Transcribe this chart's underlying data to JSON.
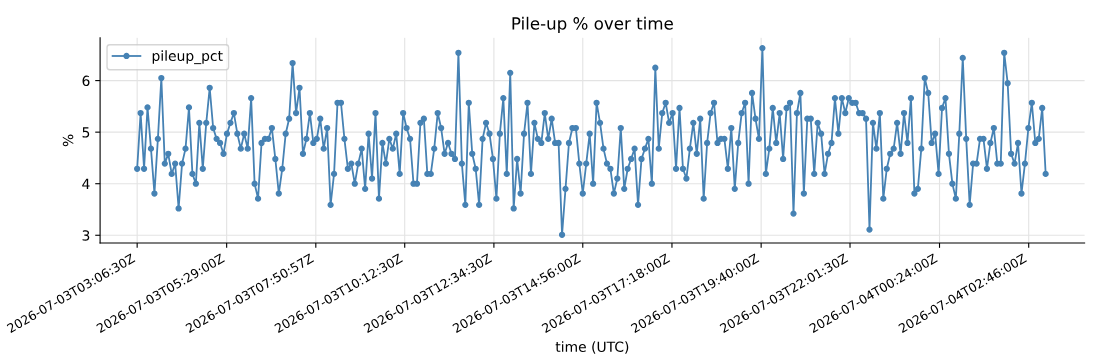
{
  "chart_data": {
    "type": "line",
    "title": "Pile-up % over time",
    "xlabel": "time (UTC)",
    "ylabel": "%",
    "x": [
      "2026-07-03T03:06:30",
      "2026-07-03T03:12:00",
      "2026-07-03T03:17:30",
      "2026-07-03T03:23:00",
      "2026-07-03T03:28:30",
      "2026-07-03T03:34:00",
      "2026-07-03T03:39:30",
      "2026-07-03T03:45:00",
      "2026-07-03T03:50:30",
      "2026-07-03T03:56:00",
      "2026-07-03T04:01:30",
      "2026-07-03T04:07:00",
      "2026-07-03T04:12:30",
      "2026-07-03T04:18:00",
      "2026-07-03T04:23:30",
      "2026-07-03T04:29:00",
      "2026-07-03T04:34:30",
      "2026-07-03T04:40:00",
      "2026-07-03T04:45:30",
      "2026-07-03T04:51:00",
      "2026-07-03T04:56:30",
      "2026-07-03T05:02:00",
      "2026-07-03T05:07:30",
      "2026-07-03T05:13:00",
      "2026-07-03T05:18:30",
      "2026-07-03T05:24:00",
      "2026-07-03T05:29:30",
      "2026-07-03T05:35:00",
      "2026-07-03T05:40:30",
      "2026-07-03T05:46:00",
      "2026-07-03T05:51:30",
      "2026-07-03T05:57:00",
      "2026-07-03T06:02:30",
      "2026-07-03T06:08:00",
      "2026-07-03T06:13:30",
      "2026-07-03T06:19:00",
      "2026-07-03T06:24:30",
      "2026-07-03T06:30:00",
      "2026-07-03T06:35:30",
      "2026-07-03T06:41:00",
      "2026-07-03T06:46:30",
      "2026-07-03T06:52:00",
      "2026-07-03T06:57:30",
      "2026-07-03T07:03:00",
      "2026-07-03T07:08:30",
      "2026-07-03T07:14:00",
      "2026-07-03T07:19:30",
      "2026-07-03T07:25:00",
      "2026-07-03T07:30:30",
      "2026-07-03T07:36:00",
      "2026-07-03T07:41:30",
      "2026-07-03T07:47:00",
      "2026-07-03T07:52:30",
      "2026-07-03T07:58:00",
      "2026-07-03T08:03:30",
      "2026-07-03T08:09:00",
      "2026-07-03T08:14:30",
      "2026-07-03T08:20:00",
      "2026-07-03T08:25:30",
      "2026-07-03T08:31:00",
      "2026-07-03T08:36:30",
      "2026-07-03T08:42:00",
      "2026-07-03T08:47:30",
      "2026-07-03T08:53:00",
      "2026-07-03T08:58:30",
      "2026-07-03T09:04:00",
      "2026-07-03T09:09:30",
      "2026-07-03T09:15:00",
      "2026-07-03T09:20:30",
      "2026-07-03T09:26:00",
      "2026-07-03T09:31:30",
      "2026-07-03T09:37:00",
      "2026-07-03T09:42:30",
      "2026-07-03T09:48:00",
      "2026-07-03T09:53:30",
      "2026-07-03T09:59:00",
      "2026-07-03T10:04:30",
      "2026-07-03T10:10:00",
      "2026-07-03T10:15:30",
      "2026-07-03T10:21:00",
      "2026-07-03T10:26:30",
      "2026-07-03T10:32:00",
      "2026-07-03T10:37:30",
      "2026-07-03T10:43:00",
      "2026-07-03T10:48:30",
      "2026-07-03T10:54:00",
      "2026-07-03T10:59:30",
      "2026-07-03T11:05:00",
      "2026-07-03T11:10:30",
      "2026-07-03T11:16:00",
      "2026-07-03T11:21:30",
      "2026-07-03T11:27:00",
      "2026-07-03T11:32:30",
      "2026-07-03T11:38:00",
      "2026-07-03T11:43:30",
      "2026-07-03T11:49:00",
      "2026-07-03T11:54:30",
      "2026-07-03T12:00:00",
      "2026-07-03T12:05:30",
      "2026-07-03T12:11:00",
      "2026-07-03T12:16:30",
      "2026-07-03T12:22:00",
      "2026-07-03T12:27:30",
      "2026-07-03T12:33:00",
      "2026-07-03T12:38:30",
      "2026-07-03T12:44:00",
      "2026-07-03T12:49:30",
      "2026-07-03T12:55:00",
      "2026-07-03T13:00:30",
      "2026-07-03T13:06:00",
      "2026-07-03T13:11:30",
      "2026-07-03T13:17:00",
      "2026-07-03T13:22:30",
      "2026-07-03T13:28:00",
      "2026-07-03T13:33:30",
      "2026-07-03T13:39:00",
      "2026-07-03T13:44:30",
      "2026-07-03T13:50:00",
      "2026-07-03T13:55:30",
      "2026-07-03T14:01:00",
      "2026-07-03T14:06:30",
      "2026-07-03T14:12:00",
      "2026-07-03T14:17:30",
      "2026-07-03T14:23:00",
      "2026-07-03T14:28:30",
      "2026-07-03T14:34:00",
      "2026-07-03T14:39:30",
      "2026-07-03T14:45:00",
      "2026-07-03T14:50:30",
      "2026-07-03T14:56:00",
      "2026-07-03T15:01:30",
      "2026-07-03T15:07:00",
      "2026-07-03T15:12:30",
      "2026-07-03T15:18:00",
      "2026-07-03T15:23:30",
      "2026-07-03T15:29:00",
      "2026-07-03T15:34:30",
      "2026-07-03T15:40:00",
      "2026-07-03T15:45:30",
      "2026-07-03T15:51:00",
      "2026-07-03T15:56:30",
      "2026-07-03T16:02:00",
      "2026-07-03T16:07:30",
      "2026-07-03T16:13:00",
      "2026-07-03T16:18:30",
      "2026-07-03T16:24:00",
      "2026-07-03T16:29:30",
      "2026-07-03T16:35:00",
      "2026-07-03T16:40:30",
      "2026-07-03T16:46:00",
      "2026-07-03T16:51:30",
      "2026-07-03T16:57:00",
      "2026-07-03T17:02:30",
      "2026-07-03T17:08:00",
      "2026-07-03T17:13:30",
      "2026-07-03T17:19:00",
      "2026-07-03T17:24:30",
      "2026-07-03T17:30:00",
      "2026-07-03T17:35:30",
      "2026-07-03T17:41:00",
      "2026-07-03T17:46:30",
      "2026-07-03T17:52:00",
      "2026-07-03T17:57:30",
      "2026-07-03T18:03:00",
      "2026-07-03T18:08:30",
      "2026-07-03T18:14:00",
      "2026-07-03T18:19:30",
      "2026-07-03T18:25:00",
      "2026-07-03T18:30:30",
      "2026-07-03T18:36:00",
      "2026-07-03T18:41:30",
      "2026-07-03T18:47:00",
      "2026-07-03T18:52:30",
      "2026-07-03T18:58:00",
      "2026-07-03T19:03:30",
      "2026-07-03T19:09:00",
      "2026-07-03T19:14:30",
      "2026-07-03T19:20:00",
      "2026-07-03T19:25:30",
      "2026-07-03T19:31:00",
      "2026-07-03T19:36:30",
      "2026-07-03T19:42:00",
      "2026-07-03T19:47:30",
      "2026-07-03T19:53:00",
      "2026-07-03T19:58:30",
      "2026-07-03T20:04:00",
      "2026-07-03T20:09:30",
      "2026-07-03T20:15:00",
      "2026-07-03T20:20:30",
      "2026-07-03T20:26:00",
      "2026-07-03T20:31:30",
      "2026-07-03T20:37:00",
      "2026-07-03T20:42:30",
      "2026-07-03T20:48:00",
      "2026-07-03T20:53:30",
      "2026-07-03T20:59:00",
      "2026-07-03T21:04:30",
      "2026-07-03T21:10:00",
      "2026-07-03T21:15:30",
      "2026-07-03T21:21:00",
      "2026-07-03T21:26:30",
      "2026-07-03T21:32:00",
      "2026-07-03T21:37:30",
      "2026-07-03T21:43:00",
      "2026-07-03T21:48:30",
      "2026-07-03T21:54:00",
      "2026-07-03T21:59:30",
      "2026-07-03T22:05:00",
      "2026-07-03T22:10:30",
      "2026-07-03T22:16:00",
      "2026-07-03T22:21:30",
      "2026-07-03T22:27:00",
      "2026-07-03T22:32:30",
      "2026-07-03T22:38:00",
      "2026-07-03T22:43:30",
      "2026-07-03T22:49:00",
      "2026-07-03T22:54:30",
      "2026-07-03T23:00:00",
      "2026-07-03T23:05:30",
      "2026-07-03T23:11:00",
      "2026-07-03T23:16:30",
      "2026-07-03T23:22:00",
      "2026-07-03T23:27:30",
      "2026-07-03T23:33:00",
      "2026-07-03T23:38:30",
      "2026-07-03T23:44:00",
      "2026-07-03T23:49:30",
      "2026-07-03T23:55:00",
      "2026-07-04T00:00:30",
      "2026-07-04T00:06:00",
      "2026-07-04T00:11:30",
      "2026-07-04T00:17:00",
      "2026-07-04T00:22:30",
      "2026-07-04T00:28:00",
      "2026-07-04T00:33:30",
      "2026-07-04T00:39:00",
      "2026-07-04T00:44:30",
      "2026-07-04T00:50:00",
      "2026-07-04T00:55:30",
      "2026-07-04T01:01:00",
      "2026-07-04T01:06:30",
      "2026-07-04T01:12:00",
      "2026-07-04T01:17:30",
      "2026-07-04T01:23:00",
      "2026-07-04T01:28:30",
      "2026-07-04T01:34:00",
      "2026-07-04T01:39:30",
      "2026-07-04T01:45:00",
      "2026-07-04T01:50:30",
      "2026-07-04T01:56:00",
      "2026-07-04T02:01:30",
      "2026-07-04T02:07:00",
      "2026-07-04T02:12:30",
      "2026-07-04T02:18:00",
      "2026-07-04T02:23:30",
      "2026-07-04T02:29:00",
      "2026-07-04T02:34:30",
      "2026-07-04T02:40:00",
      "2026-07-04T02:45:30",
      "2026-07-04T02:51:00",
      "2026-07-04T02:56:30",
      "2026-07-04T03:02:00",
      "2026-07-04T03:07:30",
      "2026-07-04T03:13:00"
    ],
    "series": [
      {
        "name": "pileup_pct",
        "color": "#4682b4",
        "values": [
          4.29,
          5.37,
          4.29,
          5.48,
          4.68,
          3.81,
          4.87,
          6.05,
          4.39,
          4.58,
          4.19,
          4.39,
          3.52,
          4.39,
          4.68,
          5.48,
          4.19,
          4.0,
          5.18,
          4.29,
          5.18,
          5.86,
          5.08,
          4.87,
          4.79,
          4.58,
          4.97,
          5.18,
          5.37,
          4.97,
          4.68,
          4.97,
          4.68,
          5.66,
          4.0,
          3.71,
          4.79,
          4.87,
          4.87,
          5.08,
          4.48,
          3.81,
          4.29,
          4.97,
          5.26,
          6.34,
          5.37,
          5.86,
          4.58,
          4.87,
          5.37,
          4.79,
          4.87,
          5.26,
          4.68,
          5.08,
          3.59,
          4.19,
          5.57,
          5.57,
          4.87,
          4.29,
          4.39,
          4.0,
          4.39,
          4.68,
          3.9,
          4.97,
          4.1,
          5.37,
          3.71,
          4.79,
          4.39,
          4.87,
          4.68,
          4.97,
          4.19,
          5.37,
          5.08,
          4.87,
          4.0,
          4.0,
          5.18,
          5.26,
          4.19,
          4.19,
          4.68,
          5.37,
          5.08,
          4.58,
          4.79,
          4.58,
          4.48,
          6.54,
          4.39,
          3.59,
          5.57,
          4.58,
          4.29,
          3.59,
          4.87,
          5.18,
          4.97,
          4.48,
          3.71,
          4.97,
          5.66,
          4.19,
          6.15,
          3.52,
          4.48,
          3.81,
          4.97,
          5.57,
          4.19,
          5.18,
          4.87,
          4.79,
          5.37,
          4.87,
          5.26,
          4.79,
          4.79,
          3.01,
          3.9,
          4.79,
          5.08,
          5.08,
          4.39,
          3.81,
          4.39,
          4.97,
          4.0,
          5.57,
          5.18,
          4.68,
          4.39,
          4.29,
          3.81,
          4.1,
          5.08,
          3.9,
          4.29,
          4.48,
          4.68,
          3.59,
          4.48,
          4.68,
          4.87,
          4.0,
          6.25,
          4.68,
          5.37,
          5.57,
          5.18,
          5.37,
          4.29,
          5.47,
          4.29,
          4.1,
          4.68,
          5.18,
          4.58,
          5.26,
          3.71,
          4.79,
          5.37,
          5.57,
          4.79,
          4.87,
          4.87,
          4.29,
          5.08,
          3.9,
          4.79,
          5.37,
          5.57,
          4.0,
          5.76,
          5.26,
          4.87,
          6.63,
          4.19,
          4.68,
          5.47,
          4.79,
          5.37,
          4.48,
          5.47,
          5.57,
          3.42,
          5.37,
          5.76,
          3.81,
          5.26,
          5.26,
          4.19,
          5.18,
          4.97,
          4.19,
          4.58,
          4.79,
          5.66,
          4.97,
          5.66,
          5.37,
          5.66,
          5.57,
          5.57,
          5.37,
          5.37,
          5.26,
          3.11,
          5.18,
          4.68,
          5.37,
          3.71,
          4.29,
          4.58,
          4.68,
          5.18,
          4.58,
          5.37,
          4.79,
          5.66,
          3.81,
          3.9,
          4.68,
          6.05,
          5.76,
          4.79,
          4.97,
          4.19,
          5.47,
          5.66,
          4.58,
          4.0,
          3.71,
          4.97,
          6.44,
          4.87,
          3.59,
          4.39,
          4.39,
          4.87,
          4.87,
          4.29,
          4.79,
          5.08,
          4.39,
          4.39,
          6.54,
          5.95,
          4.58,
          4.39,
          4.79,
          3.81,
          4.39,
          5.08,
          5.57,
          4.79,
          4.87,
          5.47,
          4.19
        ]
      }
    ],
    "xlim": [
      "2026-07-03T02:07:30",
      "2026-07-04T04:15:00"
    ],
    "xticks": [
      {
        "value": "2026-07-03T03:06:30",
        "label": "2026-07-03T03:06:30Z"
      },
      {
        "value": "2026-07-03T05:29:00",
        "label": "2026-07-03T05:29:00Z"
      },
      {
        "value": "2026-07-03T07:50:57",
        "label": "2026-07-03T07:50:57Z"
      },
      {
        "value": "2026-07-03T10:12:30",
        "label": "2026-07-03T10:12:30Z"
      },
      {
        "value": "2026-07-03T12:34:30",
        "label": "2026-07-03T12:34:30Z"
      },
      {
        "value": "2026-07-03T14:56:00",
        "label": "2026-07-03T14:56:00Z"
      },
      {
        "value": "2026-07-03T17:18:00",
        "label": "2026-07-03T17:18:00Z"
      },
      {
        "value": "2026-07-03T19:40:00",
        "label": "2026-07-03T19:40:00Z"
      },
      {
        "value": "2026-07-03T22:01:30",
        "label": "2026-07-03T22:01:30Z"
      },
      {
        "value": "2026-07-04T00:24:00",
        "label": "2026-07-04T00:24:00Z"
      },
      {
        "value": "2026-07-04T02:46:00",
        "label": "2026-07-04T02:46:00Z"
      }
    ],
    "ylim": [
      2.85,
      6.83
    ],
    "yticks": [
      3,
      4,
      5,
      6
    ],
    "grid": true,
    "legend": "top left",
    "marker": "circle",
    "line_style": "solid"
  }
}
